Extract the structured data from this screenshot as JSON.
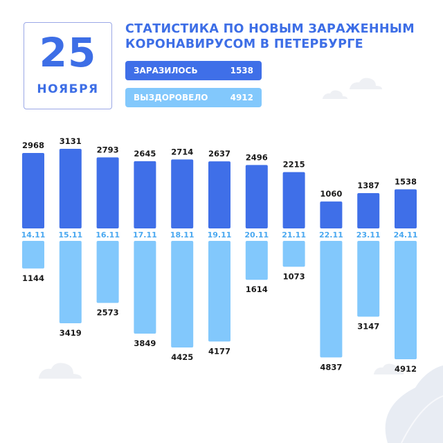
{
  "date": {
    "day": "25",
    "month": "НОЯБРЯ"
  },
  "title": {
    "line1": "СТАТИСТИКА ПО НОВЫМ ЗАРАЖЕННЫМ",
    "line2": "КОРОНАВИРУСОМ В ПЕТЕРБУРГЕ"
  },
  "legend": {
    "infected": {
      "label": "ЗАРАЗИЛОСЬ",
      "value": "1538"
    },
    "recovered": {
      "label": "ВЫЗДОРОВЕЛО",
      "value": "4912"
    }
  },
  "colors": {
    "infected": "#3f6fe8",
    "recovered": "#82c8fc",
    "accent": "#3d6ee6"
  },
  "icons": [
    "cloud-icon",
    "leaf-icon"
  ],
  "chart_data": {
    "type": "bar",
    "categories": [
      "14.11",
      "15.11",
      "16.11",
      "17.11",
      "18.11",
      "19.11",
      "20.11",
      "21.11",
      "22.11",
      "23.11",
      "24.11"
    ],
    "series": [
      {
        "name": "ЗАРАЗИЛОСЬ",
        "values": [
          2968,
          3131,
          2793,
          2645,
          2714,
          2637,
          2496,
          2215,
          1060,
          1387,
          1538
        ]
      },
      {
        "name": "ВЫЗДОРОВЕЛО",
        "values": [
          1144,
          3419,
          2573,
          3849,
          4425,
          4177,
          1614,
          1073,
          4837,
          3147,
          4912
        ]
      }
    ],
    "title": "СТАТИСТИКА ПО НОВЫМ ЗАРАЖЕННЫМ КОРОНАВИРУСОМ В ПЕТЕРБУРГЕ",
    "xlabel": "",
    "ylabel": "",
    "grid": false,
    "legend_position": "top"
  }
}
